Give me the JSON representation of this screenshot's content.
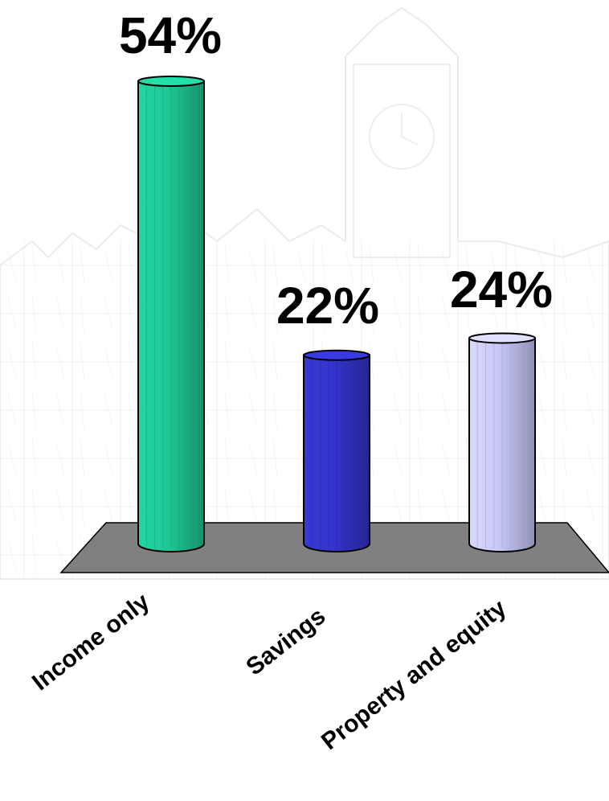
{
  "chart_data": {
    "type": "bar",
    "style": "3d-cylinder",
    "categories": [
      "Income only",
      "Savings",
      "Property and equity"
    ],
    "values": [
      54,
      22,
      24
    ],
    "value_labels": [
      "54%",
      "22%",
      "24%"
    ],
    "colors": [
      "#1fc896",
      "#3434cc",
      "#c8c8f8"
    ],
    "floor_color": "#808080",
    "unit": "%",
    "grid": false,
    "legend": "none",
    "ylim": [
      0,
      54
    ],
    "title": "",
    "xlabel": "",
    "ylabel": ""
  }
}
